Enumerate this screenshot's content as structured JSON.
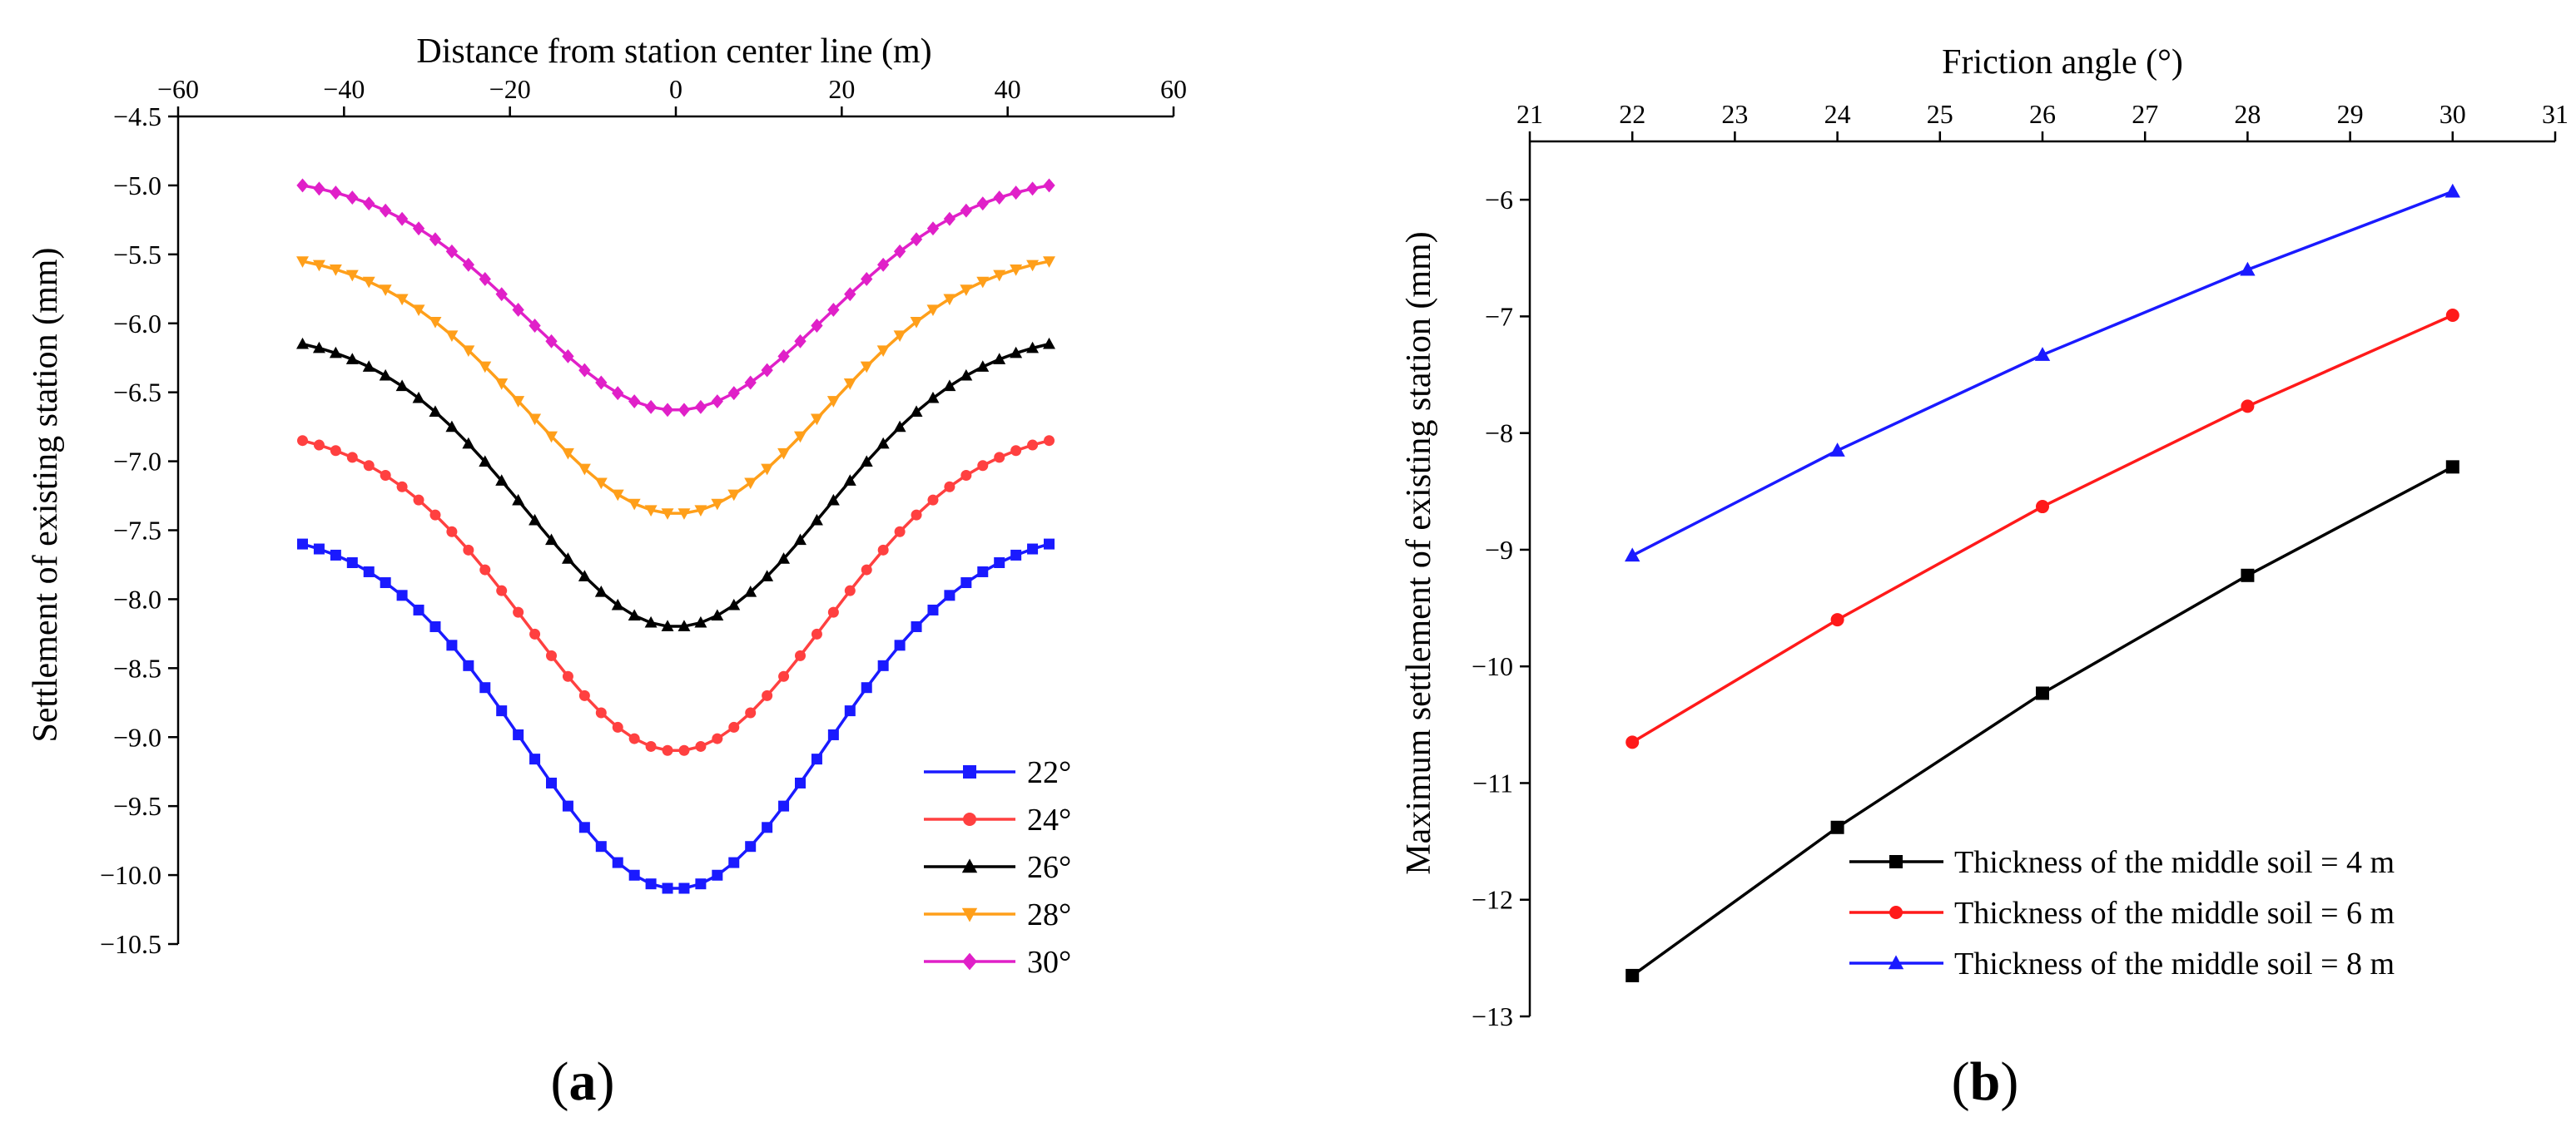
{
  "chart_data": [
    {
      "type": "line",
      "panel_label": "(a)",
      "panel_letter": "a",
      "xlabel": "Distance from station center line (m)",
      "ylabel": "Settlement of existing station (mm)",
      "xaxis_position": "top",
      "xlim": [
        -60,
        60
      ],
      "ylim": [
        -10.5,
        -4.5
      ],
      "xticks": [
        -60,
        -40,
        -20,
        0,
        20,
        40,
        60
      ],
      "yticks": [
        -4.5,
        -5.0,
        -5.5,
        -6.0,
        -6.5,
        -7.0,
        -7.5,
        -8.0,
        -8.5,
        -9.0,
        -9.5,
        -10.0,
        -10.5
      ],
      "xtick_labels": [
        "−60",
        "−40",
        "−20",
        "0",
        "20",
        "40",
        "60"
      ],
      "ytick_labels": [
        "−4.5",
        "−5.0",
        "−5.5",
        "−6.0",
        "−6.5",
        "−7.0",
        "−7.5",
        "−8.0",
        "−8.5",
        "−9.0",
        "−9.5",
        "−10.0",
        "−10.5"
      ],
      "grid": false,
      "legend_position": "bottom-right",
      "x_range": [
        -45,
        45
      ],
      "x_step": 2,
      "curve_shape": "gaussian",
      "curve_width": 18,
      "series": [
        {
          "name": "22°",
          "edge": -7.6,
          "center": -10.1,
          "color": "#1a1aff",
          "marker": "square"
        },
        {
          "name": "24°",
          "edge": -6.85,
          "center": -9.1,
          "color": "#ff4040",
          "marker": "circle"
        },
        {
          "name": "26°",
          "edge": -6.15,
          "center": -8.2,
          "color": "#000000",
          "marker": "triangle-up"
        },
        {
          "name": "28°",
          "edge": -5.55,
          "center": -7.38,
          "color": "#ff9f1a",
          "marker": "triangle-down"
        },
        {
          "name": "30°",
          "edge": -5.0,
          "center": -6.63,
          "color": "#e020c8",
          "marker": "diamond"
        }
      ]
    },
    {
      "type": "line",
      "panel_label": "(b)",
      "panel_letter": "b",
      "xlabel": "Friction angle (°)",
      "ylabel": "Maximum settlement of existing station (mm)",
      "xaxis_position": "top",
      "xlim": [
        21,
        31
      ],
      "ylim": [
        -13,
        -5.5
      ],
      "xticks": [
        21,
        22,
        23,
        24,
        25,
        26,
        27,
        28,
        29,
        30,
        31
      ],
      "yticks": [
        -6,
        -7,
        -8,
        -9,
        -10,
        -11,
        -12,
        -13
      ],
      "xtick_labels": [
        "21",
        "22",
        "23",
        "24",
        "25",
        "26",
        "27",
        "28",
        "29",
        "30",
        "31"
      ],
      "ytick_labels": [
        "−6",
        "−7",
        "−8",
        "−9",
        "−10",
        "−11",
        "−12",
        "−13"
      ],
      "grid": false,
      "legend_position": "bottom-right",
      "x": [
        22,
        24,
        26,
        28,
        30
      ],
      "series": [
        {
          "name": "Thickness of the middle soil = 4 m",
          "values": [
            -12.65,
            -11.38,
            -10.23,
            -9.22,
            -8.29
          ],
          "color": "#000000",
          "marker": "square"
        },
        {
          "name": "Thickness of the middle soil = 6 m",
          "values": [
            -10.65,
            -9.6,
            -8.63,
            -7.77,
            -6.99
          ],
          "color": "#ff1a1a",
          "marker": "circle"
        },
        {
          "name": "Thickness of the middle soil = 8 m",
          "values": [
            -9.05,
            -8.15,
            -7.33,
            -6.6,
            -5.93
          ],
          "color": "#1a1aff",
          "marker": "triangle-up"
        }
      ]
    }
  ]
}
